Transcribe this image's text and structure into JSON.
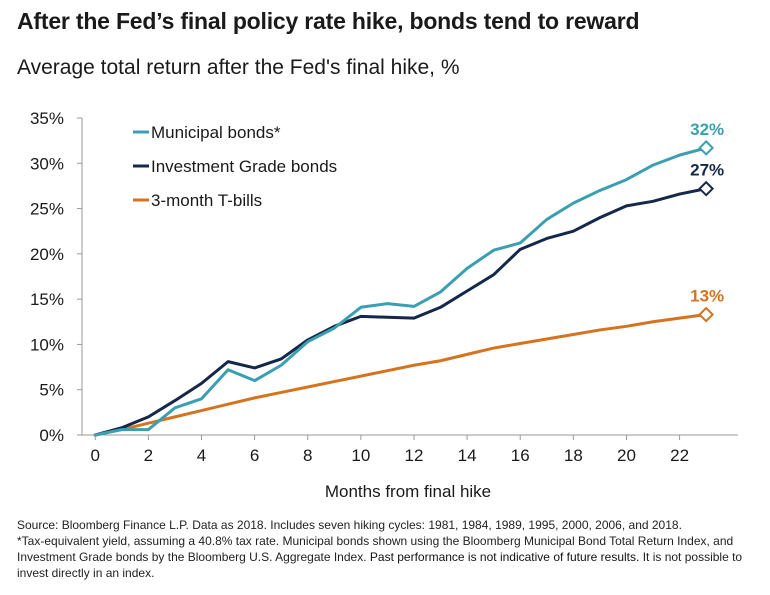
{
  "title": "After the Fed’s final policy rate hike, bonds tend to reward",
  "subtitle": "Average total return after the Fed's final hike, %",
  "footnote": {
    "line1": "Source: Bloomberg Finance L.P. Data as 2018. Includes seven hiking cycles: 1981, 1984, 1989, 1995, 2000, 2006, and 2018.",
    "line2": "*Tax-equivalent yield, assuming a 40.8% tax rate. Municipal bonds shown using the Bloomberg Municipal Bond Total Return Index, and Investment Grade bonds by the Bloomberg U.S. Aggregate Index.",
    "emphasis": "Past performance is not indicative of future results.",
    "tail": "It is not possible to invest directly in an index."
  },
  "chart_data": {
    "type": "line",
    "xlabel": "Months from final hike",
    "ylabel": "",
    "xlim": [
      -0.5,
      24.2
    ],
    "ylim": [
      0,
      35
    ],
    "x_ticks": [
      0,
      2,
      4,
      6,
      8,
      10,
      12,
      14,
      16,
      18,
      20,
      22
    ],
    "x_tick_labels": [
      "0",
      "2",
      "4",
      "6",
      "8",
      "10",
      "12",
      "14",
      "16",
      "18",
      "20",
      "22"
    ],
    "y_ticks": [
      0,
      5,
      10,
      15,
      20,
      25,
      30,
      35
    ],
    "y_tick_labels": [
      "0%",
      "5%",
      "10%",
      "15%",
      "20%",
      "25%",
      "30%",
      "35%"
    ],
    "grid": false,
    "legend": "top-left",
    "x": [
      0,
      1,
      2,
      3,
      4,
      5,
      6,
      7,
      8,
      9,
      10,
      11,
      12,
      13,
      14,
      15,
      16,
      17,
      18,
      19,
      20,
      21,
      22,
      23
    ],
    "series": [
      {
        "name": "Municipal bonds*",
        "color": "#3a9fb0",
        "values": [
          0,
          0.6,
          0.6,
          3.0,
          4.0,
          7.2,
          6.0,
          7.7,
          10.3,
          11.8,
          14.1,
          14.5,
          14.2,
          15.8,
          18.4,
          20.4,
          21.2,
          23.8,
          25.6,
          27.0,
          28.2,
          29.8,
          30.9,
          31.7
        ],
        "end_label": "32%"
      },
      {
        "name": "Investment Grade bonds",
        "color": "#14284b",
        "values": [
          0,
          0.8,
          2.0,
          3.8,
          5.7,
          8.1,
          7.4,
          8.4,
          10.5,
          12.0,
          13.1,
          13.0,
          12.9,
          14.1,
          15.9,
          17.7,
          20.5,
          21.7,
          22.5,
          24.0,
          25.3,
          25.8,
          26.6,
          27.2
        ],
        "end_label": "27%"
      },
      {
        "name": "3-month T-bills",
        "color": "#d5731f",
        "values": [
          0,
          0.6,
          1.3,
          2.0,
          2.7,
          3.4,
          4.1,
          4.7,
          5.3,
          5.9,
          6.5,
          7.1,
          7.7,
          8.2,
          8.9,
          9.6,
          10.1,
          10.6,
          11.1,
          11.6,
          12.0,
          12.5,
          12.9,
          13.3
        ],
        "end_label": "13%"
      }
    ]
  }
}
